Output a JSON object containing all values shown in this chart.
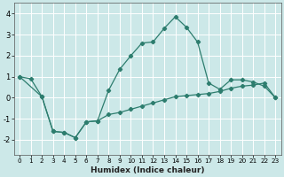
{
  "xlabel": "Humidex (Indice chaleur)",
  "bg_color": "#cce8e8",
  "grid_color": "#ffffff",
  "line_color": "#2d7d6e",
  "xlim": [
    -0.5,
    23.5
  ],
  "ylim": [
    -2.7,
    4.5
  ],
  "yticks": [
    -2,
    -1,
    0,
    1,
    2,
    3,
    4
  ],
  "xticks": [
    0,
    1,
    2,
    3,
    4,
    5,
    6,
    7,
    8,
    9,
    10,
    11,
    12,
    13,
    14,
    15,
    16,
    17,
    18,
    19,
    20,
    21,
    22,
    23
  ],
  "line1_x": [
    0,
    1,
    2,
    3,
    4,
    5,
    6,
    7,
    8,
    9,
    10,
    11,
    12,
    13,
    14,
    15,
    16,
    17,
    18,
    19,
    20,
    21,
    22,
    23
  ],
  "line1_y": [
    1.0,
    0.9,
    0.05,
    -1.6,
    -1.65,
    -1.9,
    -1.15,
    -1.1,
    0.35,
    1.35,
    2.0,
    2.6,
    2.65,
    3.3,
    3.85,
    3.35,
    2.65,
    0.7,
    0.4,
    0.85,
    0.85,
    0.75,
    0.55,
    0.0
  ],
  "line2_x": [
    0,
    2,
    3,
    4,
    5,
    6,
    7,
    8,
    9,
    10,
    11,
    12,
    13,
    14,
    15,
    16,
    17,
    18,
    19,
    20,
    21,
    22,
    23
  ],
  "line2_y": [
    1.0,
    0.05,
    -1.6,
    -1.65,
    -1.9,
    -1.15,
    -1.1,
    -0.8,
    -0.7,
    -0.55,
    -0.4,
    -0.25,
    -0.1,
    0.05,
    0.1,
    0.15,
    0.2,
    0.3,
    0.45,
    0.55,
    0.6,
    0.7,
    0.0
  ]
}
